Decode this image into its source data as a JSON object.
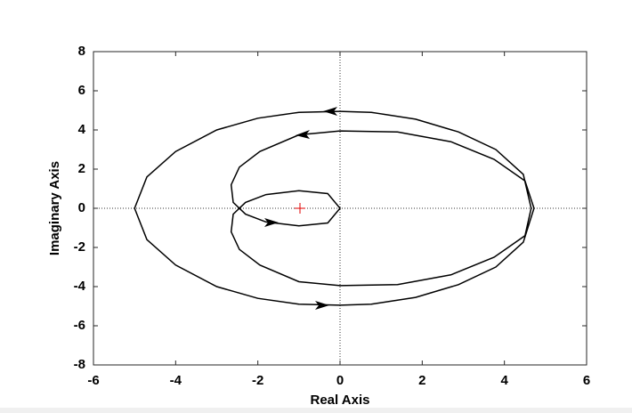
{
  "chart_data": {
    "type": "line",
    "xlabel": "Real Axis",
    "ylabel": "Imaginary Axis",
    "xlim": [
      -6,
      6
    ],
    "ylim": [
      -8,
      8
    ],
    "xticks": [
      -6,
      -4,
      -2,
      0,
      2,
      4,
      6
    ],
    "yticks": [
      -8,
      -6,
      -4,
      -2,
      0,
      2,
      4,
      6,
      8
    ],
    "x": [
      0,
      0.76,
      1.84,
      2.88,
      3.79,
      4.46,
      4.72,
      4.5,
      3.75,
      2.7,
      1.4,
      0,
      -1,
      -1.95,
      -2.45,
      -2.65,
      -2.6,
      -2.3,
      -1.8,
      -1,
      -0.3,
      0,
      -0.3,
      -1,
      -1.8,
      -2.3,
      -2.6,
      -2.65,
      -2.45,
      -1.95,
      -1,
      0,
      1.4,
      2.7,
      3.75,
      4.5,
      4.65,
      4.46,
      3.79,
      2.88,
      1.84,
      0.76,
      0,
      -1,
      -2,
      -3,
      -4,
      -4.7,
      -5,
      -4.7,
      -4,
      -3,
      -2,
      -1,
      0
    ],
    "series": [
      {
        "color": "#000000",
        "values": [
          -4.95,
          -4.9,
          -4.55,
          -3.9,
          -3.0,
          -1.73,
          0,
          1.4,
          2.5,
          3.4,
          3.9,
          3.95,
          3.75,
          2.9,
          2.1,
          1.2,
          0.3,
          -0.3,
          -0.7,
          -0.9,
          -0.75,
          0,
          0.75,
          0.9,
          0.7,
          0.3,
          -0.3,
          -1.2,
          -2.1,
          -2.9,
          -3.75,
          -3.95,
          -3.9,
          -3.4,
          -2.5,
          -1.4,
          0,
          1.73,
          3.0,
          3.9,
          4.55,
          4.9,
          4.95,
          4.9,
          4.6,
          4.0,
          2.9,
          1.6,
          0,
          -1.6,
          -2.9,
          -4.0,
          -4.6,
          -4.9,
          -4.95
        ]
      }
    ]
  }
}
